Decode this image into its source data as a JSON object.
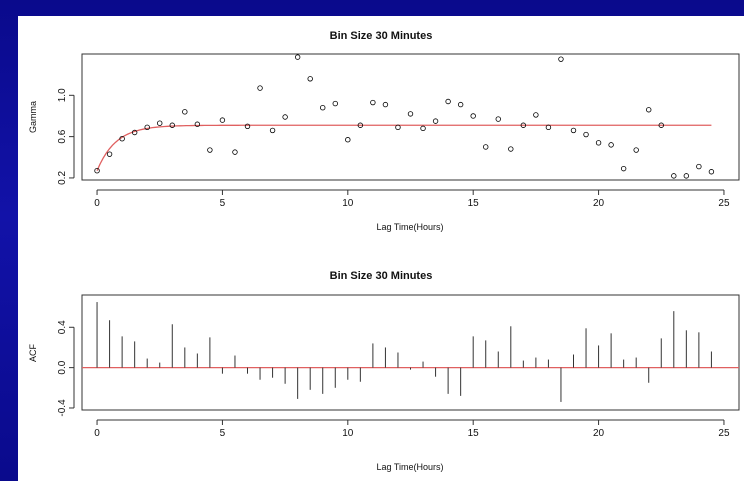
{
  "chart_data": [
    {
      "type": "scatter",
      "title": "Bin Size 30 Minutes",
      "xlabel": "Lag Time(Hours)",
      "ylabel": "Gamma",
      "xlim": [
        -0.6,
        25.6
      ],
      "ylim": [
        0.18,
        1.4
      ],
      "xticks": [
        0,
        5,
        10,
        15,
        20,
        25
      ],
      "yticks": [
        0.2,
        0.6,
        1.0
      ],
      "ytick_labels": [
        "0.2",
        "0.6",
        "1.0"
      ],
      "points_color": "#000000",
      "fit_color": "#e06060",
      "fit": {
        "sill": 0.71,
        "nugget": 0.27,
        "range": 0.75
      },
      "x": [
        0,
        0.5,
        1,
        1.5,
        2,
        2.5,
        3,
        3.5,
        4,
        4.5,
        5,
        5.5,
        6,
        6.5,
        7,
        7.5,
        8,
        8.5,
        9,
        9.5,
        10,
        10.5,
        11,
        11.5,
        12,
        12.5,
        13,
        13.5,
        14,
        14.5,
        15,
        15.5,
        16,
        16.5,
        17,
        17.5,
        18,
        18.5,
        19,
        19.5,
        20,
        20.5,
        21,
        21.5,
        22,
        22.5,
        23,
        23.5,
        24,
        24.5
      ],
      "y": [
        0.27,
        0.43,
        0.58,
        0.64,
        0.69,
        0.73,
        0.71,
        0.84,
        0.72,
        0.47,
        0.76,
        0.45,
        0.7,
        1.07,
        0.66,
        0.79,
        1.37,
        1.16,
        0.88,
        0.92,
        0.57,
        0.71,
        0.93,
        0.91,
        0.69,
        0.82,
        0.68,
        0.75,
        0.94,
        0.91,
        0.8,
        0.5,
        0.77,
        0.48,
        0.71,
        0.81,
        0.69,
        1.35,
        0.66,
        0.62,
        0.54,
        0.52,
        0.29,
        0.47,
        0.86,
        0.71,
        0.22,
        0.22,
        0.31,
        0.26
      ]
    },
    {
      "type": "bar",
      "subtype": "acf",
      "title": "Bin Size 30 Minutes",
      "xlabel": "Lag Time(Hours)",
      "ylabel": "ACF",
      "xlim": [
        -0.6,
        25.6
      ],
      "ylim": [
        -0.42,
        0.72
      ],
      "xticks": [
        0,
        5,
        10,
        15,
        20,
        25
      ],
      "yticks": [
        -0.4,
        0.0,
        0.4
      ],
      "ytick_labels": [
        "-0.4",
        "0.0",
        "0.4"
      ],
      "bar_color": "#333333",
      "zero_line_color": "#e06060",
      "x": [
        0,
        0.5,
        1,
        1.5,
        2,
        2.5,
        3,
        3.5,
        4,
        4.5,
        5,
        5.5,
        6,
        6.5,
        7,
        7.5,
        8,
        8.5,
        9,
        9.5,
        10,
        10.5,
        11,
        11.5,
        12,
        12.5,
        13,
        13.5,
        14,
        14.5,
        15,
        15.5,
        16,
        16.5,
        17,
        17.5,
        18,
        18.5,
        19,
        19.5,
        20,
        20.5,
        21,
        21.5,
        22,
        22.5,
        23,
        23.5,
        24,
        24.5
      ],
      "values": [
        0.65,
        0.47,
        0.31,
        0.26,
        0.09,
        0.05,
        0.43,
        0.2,
        0.14,
        0.3,
        -0.06,
        0.12,
        -0.06,
        -0.12,
        -0.1,
        -0.16,
        -0.31,
        -0.22,
        -0.26,
        -0.2,
        -0.12,
        -0.14,
        0.24,
        0.2,
        0.15,
        -0.02,
        0.06,
        -0.09,
        -0.26,
        -0.28,
        0.31,
        0.27,
        0.16,
        0.41,
        0.07,
        0.1,
        0.08,
        -0.34,
        0.13,
        0.39,
        0.22,
        0.34,
        0.08,
        0.1,
        -0.15,
        0.29,
        0.56,
        0.37,
        0.35,
        0.16
      ]
    }
  ]
}
